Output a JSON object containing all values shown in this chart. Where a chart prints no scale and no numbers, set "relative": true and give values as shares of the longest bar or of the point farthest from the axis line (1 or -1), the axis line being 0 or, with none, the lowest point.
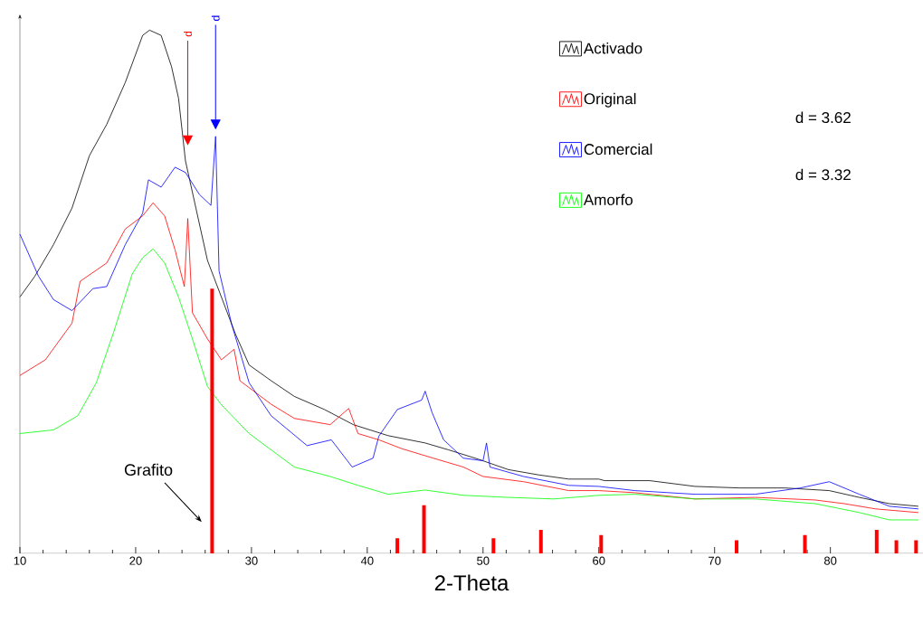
{
  "chart_data": {
    "type": "line",
    "relative": true,
    "xlabel": "2-Theta",
    "xlim": [
      10,
      88
    ],
    "xticks": [
      10,
      20,
      30,
      40,
      50,
      60,
      70,
      80
    ],
    "legend": "top right",
    "marker": "none",
    "line_style": "solid",
    "annotations": [
      "d = 3.62",
      "d = 3.32",
      "d",
      "d",
      "Grafito"
    ],
    "series": [
      {
        "name": "Activado",
        "color": "#000000",
        "x": [
          10.0,
          11.3,
          12.9,
          14.5,
          16.0,
          17.5,
          19.1,
          20.6,
          21.2,
          22.2,
          23.1,
          23.7,
          24.3,
          25.2,
          26.2,
          27.4,
          28.6,
          29.8,
          31.7,
          33.7,
          36.3,
          38.8,
          41.8,
          45.0,
          47.0,
          49.6,
          52.2,
          54.8,
          57.4,
          60.0,
          60.5,
          64.4,
          68.3,
          72.2,
          76.1,
          79.9,
          82.5,
          85.1,
          87.6
        ],
        "values": [
          0.49,
          0.53,
          0.59,
          0.66,
          0.76,
          0.82,
          0.9,
          0.99,
          1.0,
          0.99,
          0.93,
          0.87,
          0.75,
          0.66,
          0.56,
          0.49,
          0.42,
          0.36,
          0.33,
          0.3,
          0.275,
          0.246,
          0.225,
          0.211,
          0.198,
          0.18,
          0.16,
          0.15,
          0.142,
          0.142,
          0.139,
          0.139,
          0.128,
          0.125,
          0.125,
          0.12,
          0.107,
          0.095,
          0.09
        ]
      },
      {
        "name": "Original",
        "color": "#ff0000",
        "x": [
          10.0,
          12.2,
          14.5,
          15.2,
          17.5,
          19.1,
          20.6,
          21.5,
          22.5,
          23.4,
          24.2,
          24.5,
          24.9,
          26.2,
          27.4,
          28.5,
          29.0,
          31.7,
          33.7,
          36.8,
          38.4,
          39.2,
          41.0,
          43.0,
          45.7,
          48.3,
          50.0,
          53.5,
          57.4,
          60.0,
          63.1,
          68.3,
          73.5,
          78.7,
          81.2,
          83.9,
          87.6
        ],
        "values": [
          0.34,
          0.37,
          0.44,
          0.52,
          0.555,
          0.62,
          0.645,
          0.67,
          0.645,
          0.58,
          0.51,
          0.64,
          0.46,
          0.41,
          0.37,
          0.39,
          0.33,
          0.285,
          0.258,
          0.246,
          0.277,
          0.229,
          0.217,
          0.2,
          0.182,
          0.165,
          0.147,
          0.137,
          0.12,
          0.12,
          0.116,
          0.104,
          0.107,
          0.102,
          0.095,
          0.085,
          0.078
        ]
      },
      {
        "name": "Comercial",
        "color": "#0000ff",
        "x": [
          10.0,
          11.6,
          12.9,
          14.5,
          16.3,
          17.5,
          19.1,
          20.6,
          21.1,
          22.2,
          23.4,
          24.3,
          25.5,
          26.5,
          26.9,
          27.2,
          28.3,
          29.8,
          31.7,
          34.8,
          36.9,
          38.7,
          40.5,
          41.0,
          42.6,
          44.7,
          45.0,
          45.6,
          46.6,
          48.3,
          50.0,
          50.3,
          50.6,
          53.5,
          57.4,
          60.0,
          63.1,
          68.3,
          73.5,
          77.4,
          79.9,
          82.5,
          85.1,
          87.6
        ],
        "values": [
          0.61,
          0.53,
          0.485,
          0.464,
          0.506,
          0.51,
          0.59,
          0.65,
          0.714,
          0.7,
          0.738,
          0.728,
          0.686,
          0.665,
          0.797,
          0.54,
          0.437,
          0.326,
          0.263,
          0.206,
          0.217,
          0.165,
          0.182,
          0.224,
          0.275,
          0.293,
          0.31,
          0.269,
          0.217,
          0.182,
          0.177,
          0.211,
          0.165,
          0.147,
          0.13,
          0.128,
          0.12,
          0.113,
          0.113,
          0.125,
          0.137,
          0.113,
          0.09,
          0.085
        ]
      },
      {
        "name": "Amorfo",
        "color": "#00ff00",
        "x": [
          10.0,
          12.9,
          15.0,
          16.6,
          18.1,
          19.7,
          20.6,
          21.5,
          22.5,
          23.7,
          24.9,
          26.2,
          27.4,
          29.8,
          33.7,
          36.8,
          39.2,
          41.8,
          45.0,
          48.3,
          52.2,
          56.1,
          60.0,
          63.1,
          68.3,
          73.5,
          78.7,
          82.5,
          85.1,
          87.6
        ],
        "values": [
          0.229,
          0.236,
          0.263,
          0.326,
          0.423,
          0.534,
          0.565,
          0.582,
          0.555,
          0.49,
          0.41,
          0.319,
          0.284,
          0.229,
          0.165,
          0.147,
          0.13,
          0.113,
          0.121,
          0.111,
          0.107,
          0.104,
          0.111,
          0.113,
          0.104,
          0.104,
          0.095,
          0.078,
          0.064,
          0.064
        ]
      },
      {
        "type": "bar",
        "color": "#ff0000",
        "x": [
          26.6,
          42.6,
          44.9,
          50.9,
          55.0,
          60.2,
          71.9,
          77.8,
          84.0,
          85.7,
          87.4
        ],
        "values": [
          0.506,
          0.029,
          0.092,
          0.029,
          0.045,
          0.035,
          0.025,
          0.035,
          0.045,
          0.025,
          0.025
        ]
      }
    ]
  }
}
